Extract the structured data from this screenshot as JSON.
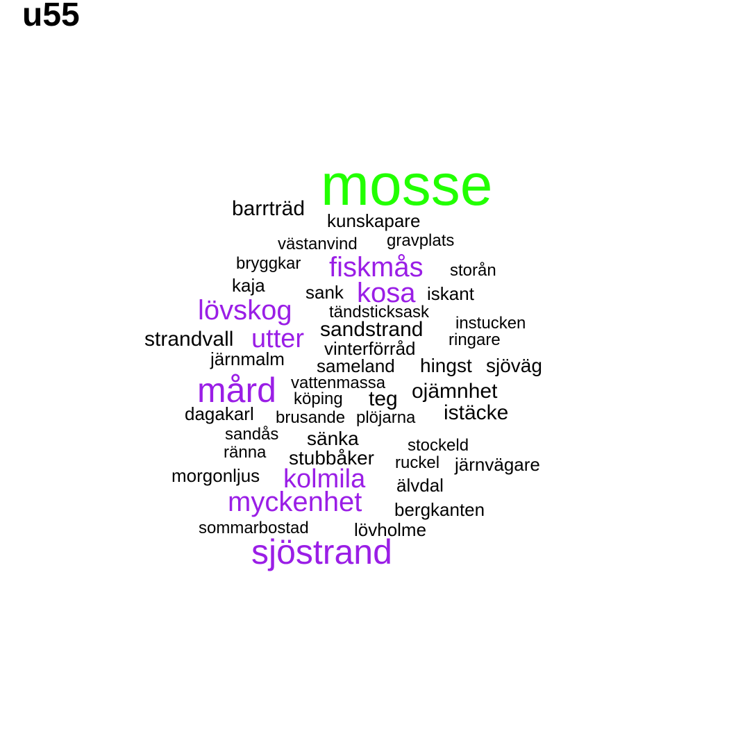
{
  "title": "u55",
  "colors": {
    "top": "#22ff00",
    "highlight": "#9a1ee6",
    "normal": "#000000"
  },
  "words": [
    {
      "text": "mosse",
      "tone": "top"
    },
    {
      "text": "barrträd",
      "tone": "normal"
    },
    {
      "text": "kunskapare",
      "tone": "normal"
    },
    {
      "text": "västanvind",
      "tone": "normal"
    },
    {
      "text": "gravplats",
      "tone": "normal"
    },
    {
      "text": "bryggkar",
      "tone": "normal"
    },
    {
      "text": "fiskmås",
      "tone": "highlight"
    },
    {
      "text": "storån",
      "tone": "normal"
    },
    {
      "text": "kaja",
      "tone": "normal"
    },
    {
      "text": "sank",
      "tone": "normal"
    },
    {
      "text": "kosa",
      "tone": "highlight"
    },
    {
      "text": "iskant",
      "tone": "normal"
    },
    {
      "text": "lövskog",
      "tone": "highlight"
    },
    {
      "text": "tändsticksask",
      "tone": "normal"
    },
    {
      "text": "instucken",
      "tone": "normal"
    },
    {
      "text": "sandstrand",
      "tone": "normal"
    },
    {
      "text": "strandvall",
      "tone": "normal"
    },
    {
      "text": "utter",
      "tone": "highlight"
    },
    {
      "text": "ringare",
      "tone": "normal"
    },
    {
      "text": "vinterförråd",
      "tone": "normal"
    },
    {
      "text": "järnmalm",
      "tone": "normal"
    },
    {
      "text": "sameland",
      "tone": "normal"
    },
    {
      "text": "hingst",
      "tone": "normal"
    },
    {
      "text": "sjöväg",
      "tone": "normal"
    },
    {
      "text": "mård",
      "tone": "highlight"
    },
    {
      "text": "vattenmassa",
      "tone": "normal"
    },
    {
      "text": "köping",
      "tone": "normal"
    },
    {
      "text": "teg",
      "tone": "normal"
    },
    {
      "text": "ojämnhet",
      "tone": "normal"
    },
    {
      "text": "dagakarl",
      "tone": "normal"
    },
    {
      "text": "brusande",
      "tone": "normal"
    },
    {
      "text": "plöjarna",
      "tone": "normal"
    },
    {
      "text": "istäcke",
      "tone": "normal"
    },
    {
      "text": "sandås",
      "tone": "normal"
    },
    {
      "text": "sänka",
      "tone": "normal"
    },
    {
      "text": "stockeld",
      "tone": "normal"
    },
    {
      "text": "ränna",
      "tone": "normal"
    },
    {
      "text": "stubbåker",
      "tone": "normal"
    },
    {
      "text": "ruckel",
      "tone": "normal"
    },
    {
      "text": "järnvägare",
      "tone": "normal"
    },
    {
      "text": "morgonljus",
      "tone": "normal"
    },
    {
      "text": "kolmila",
      "tone": "highlight"
    },
    {
      "text": "älvdal",
      "tone": "normal"
    },
    {
      "text": "myckenhet",
      "tone": "highlight"
    },
    {
      "text": "bergkanten",
      "tone": "normal"
    },
    {
      "text": "sommarbostad",
      "tone": "normal"
    },
    {
      "text": "lövholme",
      "tone": "normal"
    },
    {
      "text": "sjöstrand",
      "tone": "highlight"
    }
  ]
}
